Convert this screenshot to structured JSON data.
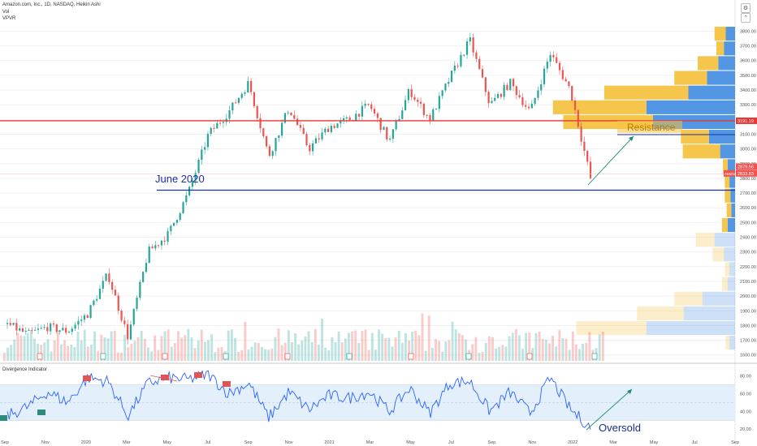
{
  "header": {
    "symbol_line": "Amazon.com, Inc., 1D, NASDAQ, Heikin Ashi",
    "vol_label": "Vol",
    "vpvr_label": "VPVR",
    "indicator_label": "Divergence Indicator"
  },
  "icons": {
    "settings": "gear-icon",
    "collapse": "chevron-up-icon"
  },
  "colors": {
    "up": "#26a69a",
    "down": "#ef5350",
    "resistance": "#e53935",
    "support": "#1a2fa8",
    "rsi": "#2962ff",
    "vp_up": "#4a90e2",
    "vp_down": "#f5c242",
    "bull_label": "#2e8b7a",
    "bear_label": "#e05555"
  },
  "chart_data": [
    {
      "type": "candlestick",
      "title": "Amazon.com, Inc., 1D, NASDAQ, Heikin Ashi",
      "x_ticks": [
        "Sep",
        "Nov",
        "2020",
        "Mar",
        "May",
        "Jul",
        "Sep",
        "Nov",
        "2021",
        "Mar",
        "May",
        "Jul",
        "Sep",
        "Nov",
        "2022",
        "Mar",
        "May",
        "Jul",
        "Sep"
      ],
      "y_ticks": [
        1600,
        1700,
        1800,
        1900,
        2000,
        2100,
        2200,
        2300,
        2400,
        2500,
        2600,
        2700,
        2800,
        2900,
        3000,
        3100,
        3200,
        3300,
        3400,
        3500,
        3600,
        3700,
        3800
      ],
      "ylim": [
        1560,
        3830
      ],
      "price_path": [
        [
          "Sep",
          1810
        ],
        [
          "Oct",
          1740
        ],
        [
          "Nov",
          1790
        ],
        [
          "Dec",
          1760
        ],
        [
          "2020",
          1880
        ],
        [
          "Feb",
          2150
        ],
        [
          "Mar",
          1720
        ],
        [
          "Apr",
          2300
        ],
        [
          "May",
          2420
        ],
        [
          "Jun",
          2700
        ],
        [
          "Jul",
          3100
        ],
        [
          "Aug",
          3250
        ],
        [
          "Sep",
          3450
        ],
        [
          "Sep",
          2950
        ],
        [
          "Oct",
          3280
        ],
        [
          "Nov",
          3000
        ],
        [
          "Dec",
          3150
        ],
        [
          "2021",
          3200
        ],
        [
          "Feb",
          3300
        ],
        [
          "Mar",
          3050
        ],
        [
          "Apr",
          3400
        ],
        [
          "May",
          3200
        ],
        [
          "Jun",
          3480
        ],
        [
          "Jul",
          3740
        ],
        [
          "Aug",
          3300
        ],
        [
          "Sep",
          3450
        ],
        [
          "Oct",
          3250
        ],
        [
          "Nov",
          3650
        ],
        [
          "Dec",
          3400
        ],
        [
          "Jan",
          2800
        ]
      ],
      "horizontal_levels": [
        {
          "name": "Resistance",
          "price": 3191.19
        },
        {
          "name": "June 2020",
          "price": 2720
        }
      ],
      "price_labels": [
        "3191.19",
        "2879.56",
        "2833.83"
      ],
      "price_tag_symbol": "AMZN",
      "annotations": [
        "June 2020",
        "Resistance"
      ]
    },
    {
      "type": "bar",
      "title": "VPVR",
      "price_levels": [
        3780,
        3680,
        3580,
        3480,
        3380,
        3280,
        3180,
        3080,
        2980,
        2880,
        2780,
        2680,
        2580,
        2480,
        2380,
        2280,
        2180,
        2080,
        1980,
        1880,
        1780,
        1680
      ],
      "series": [
        {
          "name": "up",
          "values": [
            10,
            12,
            18,
            30,
            50,
            95,
            88,
            28,
            16,
            8,
            6,
            5,
            4,
            8,
            22,
            12,
            6,
            8,
            35,
            55,
            95,
            6
          ]
        },
        {
          "name": "down",
          "values": [
            12,
            8,
            22,
            35,
            90,
            100,
            96,
            30,
            40,
            5,
            5,
            6,
            5,
            6,
            20,
            12,
            5,
            6,
            30,
            50,
            75,
            4
          ]
        }
      ]
    },
    {
      "type": "line",
      "title": "Divergence Indicator",
      "x_ticks": [
        "Sep",
        "Nov",
        "2020",
        "Mar",
        "May",
        "Jul",
        "Sep",
        "Nov",
        "2021",
        "Mar",
        "May",
        "Jul",
        "Sep",
        "Nov",
        "2022",
        "Mar",
        "May",
        "Jul",
        "Sep"
      ],
      "y_ticks": [
        20,
        40,
        60,
        80
      ],
      "ylim": [
        10,
        88
      ],
      "band": [
        30,
        70
      ],
      "rsi_path": [
        [
          "Sep",
          35
        ],
        [
          "Oct",
          45
        ],
        [
          "Nov",
          62
        ],
        [
          "Dec",
          50
        ],
        [
          "2020",
          78
        ],
        [
          "Feb",
          74
        ],
        [
          "Mar",
          35
        ],
        [
          "Apr",
          72
        ],
        [
          "May",
          78
        ],
        [
          "Jun",
          76
        ],
        [
          "Jul",
          82
        ],
        [
          "Aug",
          60
        ],
        [
          "Sep",
          72
        ],
        [
          "Sep",
          33
        ],
        [
          "Oct",
          62
        ],
        [
          "Nov",
          42
        ],
        [
          "Dec",
          58
        ],
        [
          "2021",
          55
        ],
        [
          "Feb",
          62
        ],
        [
          "Mar",
          40
        ],
        [
          "Apr",
          66
        ],
        [
          "May",
          38
        ],
        [
          "Jun",
          72
        ],
        [
          "Jul",
          74
        ],
        [
          "Aug",
          40
        ],
        [
          "Sep",
          62
        ],
        [
          "Oct",
          38
        ],
        [
          "Nov",
          78
        ],
        [
          "Dec",
          42
        ],
        [
          "Jan",
          22
        ]
      ],
      "annotations": [
        "Oversold"
      ]
    }
  ]
}
